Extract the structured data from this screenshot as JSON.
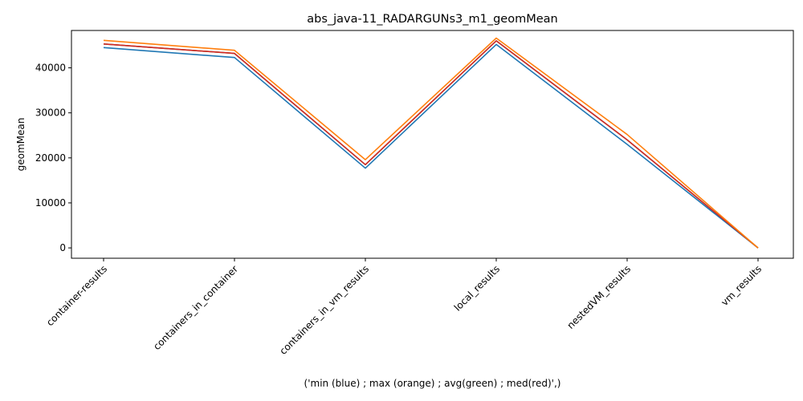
{
  "chart_data": {
    "type": "line",
    "title": "abs_java-11_RADARGUNs3_m1_geomMean",
    "xlabel": "('min (blue) ; max (orange) ; avg(green) ; med(red)',)",
    "ylabel": "geomMean",
    "categories": [
      "container-results",
      "containers_in_container",
      "containers_in_vm_results",
      "local_results",
      "nestedVM_results",
      "vm_results"
    ],
    "ylim": [
      -2300,
      48300
    ],
    "yticks": [
      0,
      10000,
      20000,
      30000,
      40000
    ],
    "grid": false,
    "series": [
      {
        "color": "#1f77b4",
        "values": [
          44500,
          42300,
          17700,
          45200,
          23000,
          0
        ]
      },
      {
        "color": "#2ca02c",
        "values": [
          45300,
          43200,
          18500,
          46000,
          24000,
          0
        ]
      },
      {
        "color": "#d62728",
        "values": [
          45300,
          43200,
          18500,
          46000,
          24000,
          0
        ]
      },
      {
        "color": "#ff7f0e",
        "values": [
          46100,
          43900,
          19600,
          46600,
          25200,
          0
        ]
      }
    ]
  }
}
